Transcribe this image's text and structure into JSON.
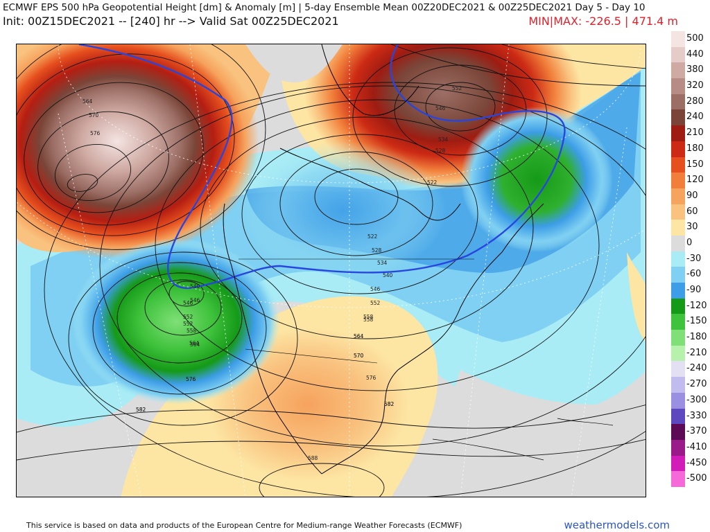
{
  "header": {
    "title": "ECMWF EPS 500 hPa Geopotential Height [dm] & Anomaly [m] | 5-day Ensemble Mean 00Z20DEC2021 & 00Z25DEC2021   Day 5 - Day 10",
    "init_line": "Init: 00Z15DEC2021 -- [240] hr --> Valid Sat 00Z25DEC2021",
    "minmax": "MIN|MAX: -226.5 | 471.4 m"
  },
  "map": {
    "contour_labels": [
      "564",
      "570",
      "576",
      "522",
      "528",
      "534",
      "546",
      "552",
      "540",
      "546",
      "552",
      "558",
      "564",
      "546",
      "552",
      "558",
      "564",
      "570",
      "576",
      "582",
      "582",
      "522",
      "528",
      "534",
      "540",
      "546",
      "552",
      "558",
      "564",
      "570",
      "576",
      "582",
      "588",
      "582",
      "576",
      "564"
    ]
  },
  "colorbar": {
    "entries": [
      {
        "label": "500",
        "color": "#f4e4e2"
      },
      {
        "label": "440",
        "color": "#e6ccc8"
      },
      {
        "label": "380",
        "color": "#cfaaa3"
      },
      {
        "label": "320",
        "color": "#b78c84"
      },
      {
        "label": "280",
        "color": "#9c6f66"
      },
      {
        "label": "240",
        "color": "#7a4538"
      },
      {
        "label": "210",
        "color": "#9e1c12"
      },
      {
        "label": "180",
        "color": "#cc2a14"
      },
      {
        "label": "150",
        "color": "#e6501e"
      },
      {
        "label": "120",
        "color": "#f17f3b"
      },
      {
        "label": "90",
        "color": "#f6a35d"
      },
      {
        "label": "60",
        "color": "#f9c27f"
      },
      {
        "label": "30",
        "color": "#fde5a3"
      },
      {
        "label": "0",
        "color": "#dcdcdc"
      },
      {
        "label": "-30",
        "color": "#a9ecf5"
      },
      {
        "label": "-60",
        "color": "#7fd0f2"
      },
      {
        "label": "-90",
        "color": "#3d9de6"
      },
      {
        "label": "-120",
        "color": "#159a18"
      },
      {
        "label": "-150",
        "color": "#3fc23c"
      },
      {
        "label": "-180",
        "color": "#7fe077"
      },
      {
        "label": "-210",
        "color": "#b6f2ac"
      },
      {
        "label": "-240",
        "color": "#e4e0f4"
      },
      {
        "label": "-270",
        "color": "#c2bbee"
      },
      {
        "label": "-300",
        "color": "#9a8fe0"
      },
      {
        "label": "-330",
        "color": "#5d48c0"
      },
      {
        "label": "-370",
        "color": "#5c0a56"
      },
      {
        "label": "-410",
        "color": "#9a1a8a"
      },
      {
        "label": "-450",
        "color": "#d21cb8"
      },
      {
        "label": "-500",
        "color": "#f56ad8"
      }
    ]
  },
  "footer": {
    "credit": "This service is based on data and products of the European Centre for Medium-range Weather Forecasts (ECMWF)",
    "brand": "weathermodels.com"
  }
}
